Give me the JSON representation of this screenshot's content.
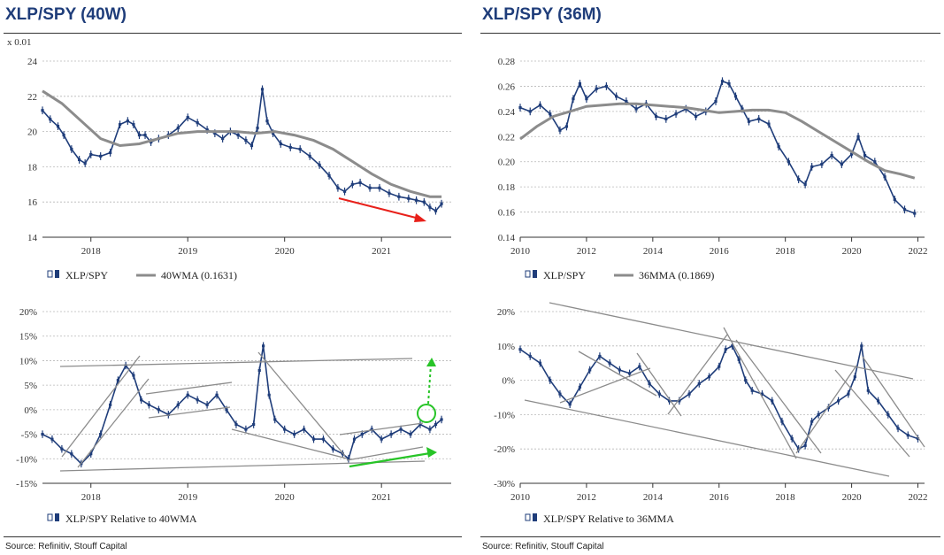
{
  "left_title": "XLP/SPY (40W)",
  "right_title": "XLP/SPY (36M)",
  "source_left": "Source: Refinitiv, Stouff Capital",
  "source_right": "Source: Refinitiv, Stouff Capital",
  "colors": {
    "title": "#1f3d7a",
    "series": "#1f3d7a",
    "ma": "#8c8c8c",
    "trend": "#8c8c8c",
    "red_arrow": "#e8201a",
    "green": "#27c427"
  },
  "chart_data": [
    {
      "id": "weekly_ratio",
      "type": "line",
      "title": "XLP/SPY (40W)",
      "multiplier_label": "x 0.01",
      "ylim": [
        14,
        24
      ],
      "yticks": [
        "14",
        "16",
        "18",
        "20",
        "22",
        "24"
      ],
      "xlim": [
        2017.5,
        2021.72
      ],
      "xticks": [
        "2018",
        "2019",
        "2020",
        "2021"
      ],
      "series": [
        {
          "name": "XLP/SPY",
          "style": "candlestick",
          "x": [
            2017.5,
            2017.58,
            2017.66,
            2017.72,
            2017.8,
            2017.88,
            2017.94,
            2018.0,
            2018.1,
            2018.2,
            2018.3,
            2018.38,
            2018.44,
            2018.5,
            2018.56,
            2018.62,
            2018.7,
            2018.8,
            2018.9,
            2019.0,
            2019.1,
            2019.2,
            2019.28,
            2019.36,
            2019.44,
            2019.52,
            2019.6,
            2019.66,
            2019.72,
            2019.77,
            2019.82,
            2019.88,
            2019.96,
            2020.06,
            2020.16,
            2020.26,
            2020.36,
            2020.46,
            2020.55,
            2020.62,
            2020.7,
            2020.78,
            2020.88,
            2020.98,
            2021.08,
            2021.18,
            2021.28,
            2021.36,
            2021.44,
            2021.5,
            2021.56,
            2021.62
          ],
          "values": [
            21.2,
            20.7,
            20.3,
            19.8,
            19.0,
            18.4,
            18.2,
            18.7,
            18.6,
            18.8,
            20.4,
            20.6,
            20.4,
            19.8,
            19.8,
            19.4,
            19.6,
            19.8,
            20.2,
            20.8,
            20.5,
            20.1,
            19.9,
            19.6,
            20.0,
            19.8,
            19.5,
            19.2,
            20.2,
            22.4,
            20.6,
            19.9,
            19.3,
            19.1,
            19.0,
            18.6,
            18.1,
            17.5,
            16.8,
            16.6,
            17.0,
            17.1,
            16.8,
            16.8,
            16.5,
            16.3,
            16.2,
            16.1,
            16.0,
            15.7,
            15.5,
            15.9
          ]
        },
        {
          "name": "40WMA (0.1631)",
          "style": "line",
          "x": [
            2017.5,
            2017.7,
            2017.9,
            2018.1,
            2018.3,
            2018.5,
            2018.7,
            2018.9,
            2019.1,
            2019.3,
            2019.5,
            2019.7,
            2019.9,
            2020.1,
            2020.3,
            2020.5,
            2020.7,
            2020.9,
            2021.1,
            2021.3,
            2021.5,
            2021.62
          ],
          "values": [
            22.3,
            21.6,
            20.6,
            19.6,
            19.2,
            19.3,
            19.6,
            19.9,
            20.0,
            20.0,
            20.0,
            19.9,
            20.0,
            19.8,
            19.5,
            19.0,
            18.3,
            17.6,
            17.0,
            16.6,
            16.3,
            16.3
          ]
        }
      ],
      "legend": "bottom-left",
      "grid": "horizontal dashed"
    },
    {
      "id": "monthly_ratio",
      "type": "line",
      "title": "XLP/SPY (36M)",
      "ylim": [
        0.14,
        0.28
      ],
      "yticks": [
        "0.14",
        "0.16",
        "0.18",
        "0.20",
        "0.22",
        "0.24",
        "0.26",
        "0.28"
      ],
      "xlim": [
        2010,
        2022.2
      ],
      "xticks": [
        "2010",
        "2012",
        "2014",
        "2016",
        "2018",
        "2020",
        "2022"
      ],
      "series": [
        {
          "name": "XLP/SPY",
          "style": "candlestick",
          "x": [
            2010.0,
            2010.3,
            2010.6,
            2010.9,
            2011.2,
            2011.4,
            2011.6,
            2011.8,
            2012.0,
            2012.3,
            2012.6,
            2012.9,
            2013.2,
            2013.5,
            2013.8,
            2014.1,
            2014.4,
            2014.7,
            2015.0,
            2015.3,
            2015.6,
            2015.9,
            2016.1,
            2016.3,
            2016.5,
            2016.7,
            2016.9,
            2017.2,
            2017.5,
            2017.8,
            2018.1,
            2018.4,
            2018.6,
            2018.8,
            2019.1,
            2019.4,
            2019.7,
            2020.0,
            2020.2,
            2020.4,
            2020.7,
            2021.0,
            2021.3,
            2021.6,
            2021.9
          ],
          "values": [
            0.243,
            0.24,
            0.245,
            0.238,
            0.225,
            0.228,
            0.25,
            0.262,
            0.25,
            0.258,
            0.26,
            0.252,
            0.248,
            0.242,
            0.246,
            0.236,
            0.234,
            0.238,
            0.242,
            0.236,
            0.24,
            0.248,
            0.264,
            0.262,
            0.252,
            0.242,
            0.232,
            0.234,
            0.23,
            0.212,
            0.2,
            0.186,
            0.182,
            0.196,
            0.198,
            0.205,
            0.198,
            0.206,
            0.22,
            0.205,
            0.2,
            0.188,
            0.17,
            0.162,
            0.159
          ]
        },
        {
          "name": "36MMA (0.1869)",
          "style": "line",
          "x": [
            2010.0,
            2010.5,
            2011.0,
            2011.5,
            2012.0,
            2012.5,
            2013.0,
            2013.5,
            2014.0,
            2014.5,
            2015.0,
            2015.5,
            2016.0,
            2016.5,
            2017.0,
            2017.5,
            2018.0,
            2018.5,
            2019.0,
            2019.5,
            2020.0,
            2020.5,
            2021.0,
            2021.5,
            2021.9
          ],
          "values": [
            0.218,
            0.228,
            0.236,
            0.24,
            0.244,
            0.245,
            0.246,
            0.246,
            0.245,
            0.244,
            0.243,
            0.241,
            0.239,
            0.24,
            0.241,
            0.241,
            0.239,
            0.232,
            0.224,
            0.216,
            0.208,
            0.2,
            0.193,
            0.19,
            0.187
          ]
        }
      ],
      "legend": "bottom-left",
      "grid": "horizontal dashed"
    },
    {
      "id": "weekly_rel",
      "type": "line",
      "ylim": [
        -15,
        20
      ],
      "yticks": [
        "-15%",
        "-10%",
        "-5%",
        "0%",
        "5%",
        "10%",
        "15%",
        "20%"
      ],
      "xlim": [
        2017.5,
        2021.72
      ],
      "xticks": [
        "2018",
        "2019",
        "2020",
        "2021"
      ],
      "series": [
        {
          "name": "XLP/SPY Relative to 40WMA",
          "style": "candlestick",
          "x": [
            2017.5,
            2017.6,
            2017.7,
            2017.8,
            2017.9,
            2018.0,
            2018.1,
            2018.2,
            2018.28,
            2018.36,
            2018.44,
            2018.52,
            2018.6,
            2018.7,
            2018.8,
            2018.9,
            2019.0,
            2019.1,
            2019.2,
            2019.3,
            2019.4,
            2019.5,
            2019.6,
            2019.68,
            2019.74,
            2019.78,
            2019.84,
            2019.9,
            2020.0,
            2020.1,
            2020.2,
            2020.3,
            2020.4,
            2020.5,
            2020.6,
            2020.66,
            2020.72,
            2020.8,
            2020.9,
            2021.0,
            2021.1,
            2021.2,
            2021.3,
            2021.4,
            2021.5,
            2021.56,
            2021.62
          ],
          "values": [
            -5,
            -6,
            -8,
            -9,
            -11,
            -9,
            -5,
            1,
            6,
            9,
            7,
            2,
            1,
            0,
            -1,
            1,
            3,
            2,
            1,
            3,
            0,
            -3,
            -4,
            -3,
            8,
            13,
            3,
            -2,
            -4,
            -5,
            -4,
            -6,
            -6,
            -8,
            -9,
            -10,
            -6,
            -5,
            -4,
            -6,
            -5,
            -4,
            -5,
            -3,
            -4,
            -3,
            -2
          ]
        }
      ],
      "legend": "bottom-left",
      "grid": "horizontal dashed"
    },
    {
      "id": "monthly_rel",
      "type": "line",
      "ylim": [
        -30,
        20
      ],
      "yticks": [
        "-30%",
        "-20%",
        "-10%",
        "0%",
        "10%",
        "20%"
      ],
      "xlim": [
        2010,
        2022.2
      ],
      "xticks": [
        "2010",
        "2012",
        "2014",
        "2016",
        "2018",
        "2020",
        "2022"
      ],
      "series": [
        {
          "name": "XLP/SPY Relative to 36MMA",
          "style": "candlestick",
          "x": [
            2010.0,
            2010.3,
            2010.6,
            2010.9,
            2011.2,
            2011.5,
            2011.8,
            2012.1,
            2012.4,
            2012.7,
            2013.0,
            2013.3,
            2013.6,
            2013.9,
            2014.2,
            2014.5,
            2014.8,
            2015.1,
            2015.4,
            2015.7,
            2016.0,
            2016.2,
            2016.4,
            2016.6,
            2016.8,
            2017.0,
            2017.3,
            2017.6,
            2017.9,
            2018.2,
            2018.4,
            2018.6,
            2018.8,
            2019.0,
            2019.3,
            2019.6,
            2019.9,
            2020.1,
            2020.3,
            2020.5,
            2020.8,
            2021.1,
            2021.4,
            2021.7,
            2022.0
          ],
          "values": [
            9,
            7,
            5,
            0,
            -4,
            -7,
            -2,
            3,
            7,
            5,
            3,
            2,
            4,
            -1,
            -4,
            -6,
            -6,
            -4,
            -1,
            1,
            4,
            9,
            10,
            6,
            0,
            -3,
            -4,
            -6,
            -12,
            -17,
            -20,
            -19,
            -12,
            -10,
            -8,
            -6,
            -4,
            1,
            10,
            -3,
            -6,
            -10,
            -14,
            -16,
            -17
          ]
        }
      ],
      "legend": "bottom-left",
      "grid": "horizontal dashed"
    }
  ]
}
